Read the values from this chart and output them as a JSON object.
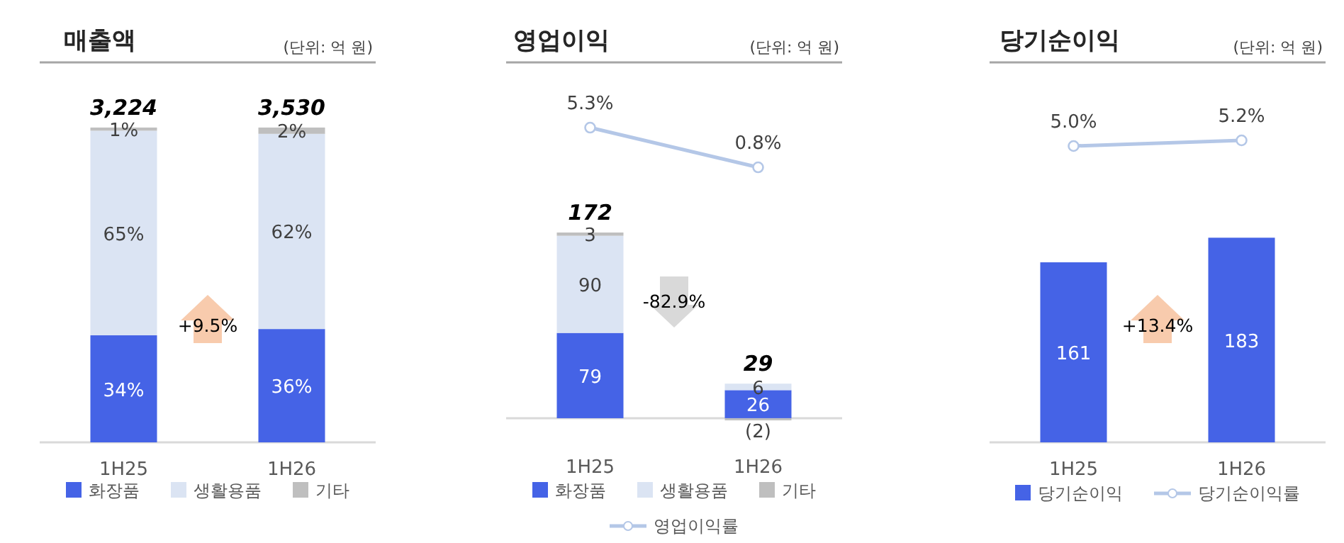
{
  "chart_data": [
    {
      "type": "bar",
      "title": "매출액",
      "subtitle": "(단위: 억 원)",
      "categories": [
        "1H25",
        "1H26"
      ],
      "stacked": true,
      "legend": "bottom",
      "ylim": [
        0,
        120.7
      ],
      "series": [
        {
          "name": "화장품",
          "color": "#4563e6",
          "values": [
            34,
            36
          ],
          "value_labels": [
            "34%",
            "36%"
          ]
        },
        {
          "name": "생활용품",
          "color": "#dbe4f3",
          "values": [
            65,
            62
          ],
          "value_labels": [
            "65%",
            "62%"
          ]
        },
        {
          "name": "기타",
          "color": "#bfbfbf",
          "values": [
            1,
            2
          ],
          "value_labels": [
            "1%",
            "2%"
          ]
        }
      ],
      "annotations": [
        "+9.5%",
        {
          "text": "3,224",
          "x": "1H25",
          "y": 100
        },
        {
          "text": "3,530",
          "x": "1H26",
          "y": 100
        }
      ]
    },
    {
      "type": "bar",
      "title": "영업이익",
      "subtitle": "(단위: 억 원)",
      "categories": [
        "1H25",
        "1H26"
      ],
      "stacked": true,
      "legend": "bottom",
      "ylim": [
        -2,
        329.6
      ],
      "y2lim": [
        -27.9,
        12.7
      ],
      "series": [
        {
          "name": "화장품",
          "color": "#4563e6",
          "values": [
            79,
            26
          ],
          "value_labels": [
            "79",
            "26"
          ]
        },
        {
          "name": "생활용품",
          "color": "#dbe4f3",
          "values": [
            90,
            6
          ],
          "value_labels": [
            "90",
            "6"
          ]
        },
        {
          "name": "기타",
          "color": "#bfbfbf",
          "values": [
            3,
            -2
          ],
          "value_labels": [
            "3",
            "(2)"
          ]
        },
        {
          "name": "영업이익률",
          "type": "line",
          "axis": "y2",
          "marker": "circle",
          "color": "#b4c7e7",
          "values": [
            5.3,
            0.8
          ],
          "value_labels": [
            "5.3%",
            "0.8%"
          ]
        }
      ],
      "totals": [
        "172",
        "29"
      ],
      "annotations": [
        "-82.9%"
      ]
    },
    {
      "type": "bar",
      "title": "당기순이익",
      "subtitle": "(단위: 억 원)",
      "categories": [
        "1H25",
        "1H26"
      ],
      "legend": "bottom",
      "ylim": [
        0,
        339.8
      ],
      "y2lim": [
        -5.45,
        7.95
      ],
      "series": [
        {
          "name": "당기순이익",
          "color": "#4563e6",
          "values": [
            161,
            183
          ],
          "value_labels": [
            "161",
            "183"
          ]
        },
        {
          "name": "당기순이익률",
          "type": "line",
          "axis": "y2",
          "marker": "circle",
          "color": "#b4c7e7",
          "values": [
            5.0,
            5.2
          ],
          "value_labels": [
            "5.0%",
            "5.2%"
          ]
        }
      ],
      "annotations": [
        "+13.4%"
      ]
    }
  ]
}
